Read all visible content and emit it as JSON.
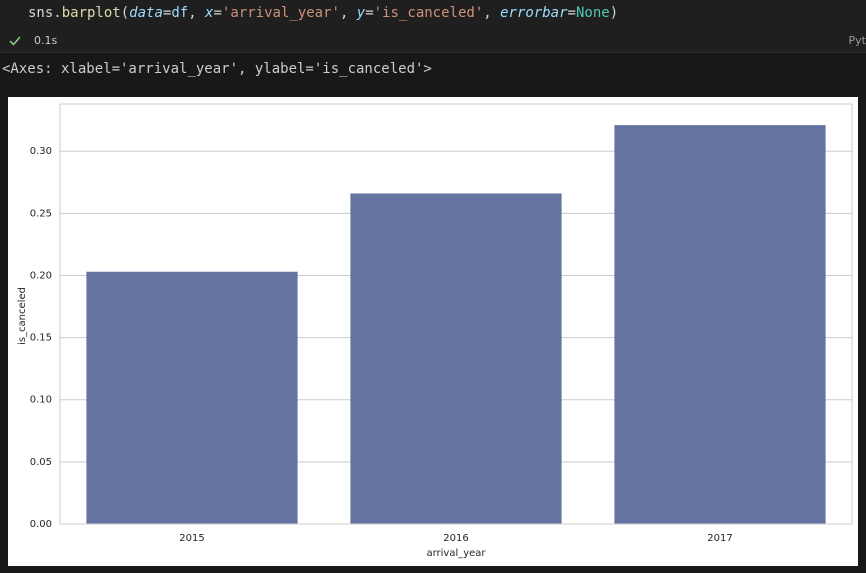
{
  "code": {
    "tokens": [
      {
        "text": "sns.",
        "color": "#d4d4d4",
        "italic": false
      },
      {
        "text": "barplot",
        "color": "#dcdcaa",
        "italic": false
      },
      {
        "text": "(",
        "color": "#d4d4d4",
        "italic": false
      },
      {
        "text": "data",
        "color": "#9cdcfe",
        "italic": true
      },
      {
        "text": "=",
        "color": "#d4d4d4",
        "italic": false
      },
      {
        "text": "df",
        "color": "#9cdcfe",
        "italic": false
      },
      {
        "text": ", ",
        "color": "#d4d4d4",
        "italic": false
      },
      {
        "text": "x",
        "color": "#9cdcfe",
        "italic": true
      },
      {
        "text": "=",
        "color": "#d4d4d4",
        "italic": false
      },
      {
        "text": "'arrival_year'",
        "color": "#ce9178",
        "italic": false
      },
      {
        "text": ", ",
        "color": "#d4d4d4",
        "italic": false
      },
      {
        "text": "y",
        "color": "#9cdcfe",
        "italic": true
      },
      {
        "text": "=",
        "color": "#d4d4d4",
        "italic": false
      },
      {
        "text": "'is_canceled'",
        "color": "#ce9178",
        "italic": false
      },
      {
        "text": ", ",
        "color": "#d4d4d4",
        "italic": false
      },
      {
        "text": "errorbar",
        "color": "#9cdcfe",
        "italic": true
      },
      {
        "text": "=",
        "color": "#d4d4d4",
        "italic": false
      },
      {
        "text": "None",
        "color": "#4ec9b0",
        "italic": false
      },
      {
        "text": ")",
        "color": "#d4d4d4",
        "italic": false
      }
    ]
  },
  "status": {
    "duration": "0.1s",
    "kernel": "Pyt"
  },
  "output": {
    "text": "<Axes: xlabel='arrival_year', ylabel='is_canceled'>"
  },
  "chart_data": {
    "type": "bar",
    "xlabel": "arrival_year",
    "ylabel": "is_canceled",
    "categories": [
      "2015",
      "2016",
      "2017"
    ],
    "values": [
      0.203,
      0.266,
      0.321
    ],
    "color": "#6475a2",
    "ylim": [
      0,
      0.338
    ],
    "yticks": [
      {
        "value": 0,
        "label": "0.00"
      },
      {
        "value": 0.05,
        "label": "0.05"
      },
      {
        "value": 0.1,
        "label": "0.10"
      },
      {
        "value": 0.15,
        "label": "0.15"
      },
      {
        "value": 0.2,
        "label": "0.20"
      },
      {
        "value": 0.25,
        "label": "0.25"
      },
      {
        "value": 0.3,
        "label": "0.30"
      }
    ],
    "grid": true
  }
}
